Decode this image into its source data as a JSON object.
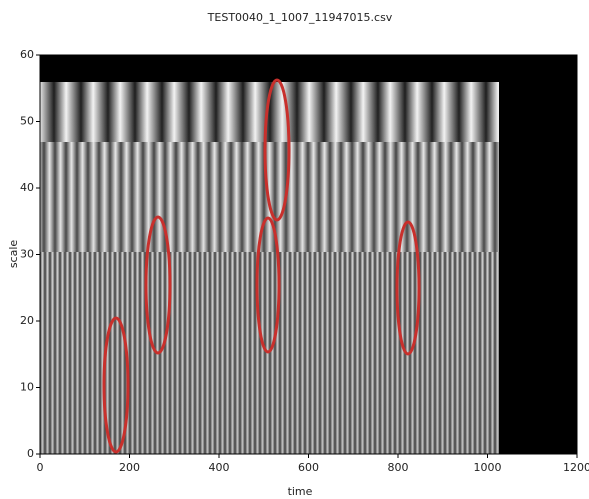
{
  "chart_data": {
    "type": "heatmap",
    "title": "TEST0040_1_1007_11947015.csv",
    "xlabel": "time",
    "ylabel": "scale",
    "xlim": [
      0,
      1200
    ],
    "xticks": [
      0,
      200,
      400,
      600,
      800,
      1000,
      1200
    ],
    "ylim": [
      0,
      60
    ],
    "yticks": [
      0,
      10,
      20,
      30,
      40,
      50,
      60
    ]
  }
}
